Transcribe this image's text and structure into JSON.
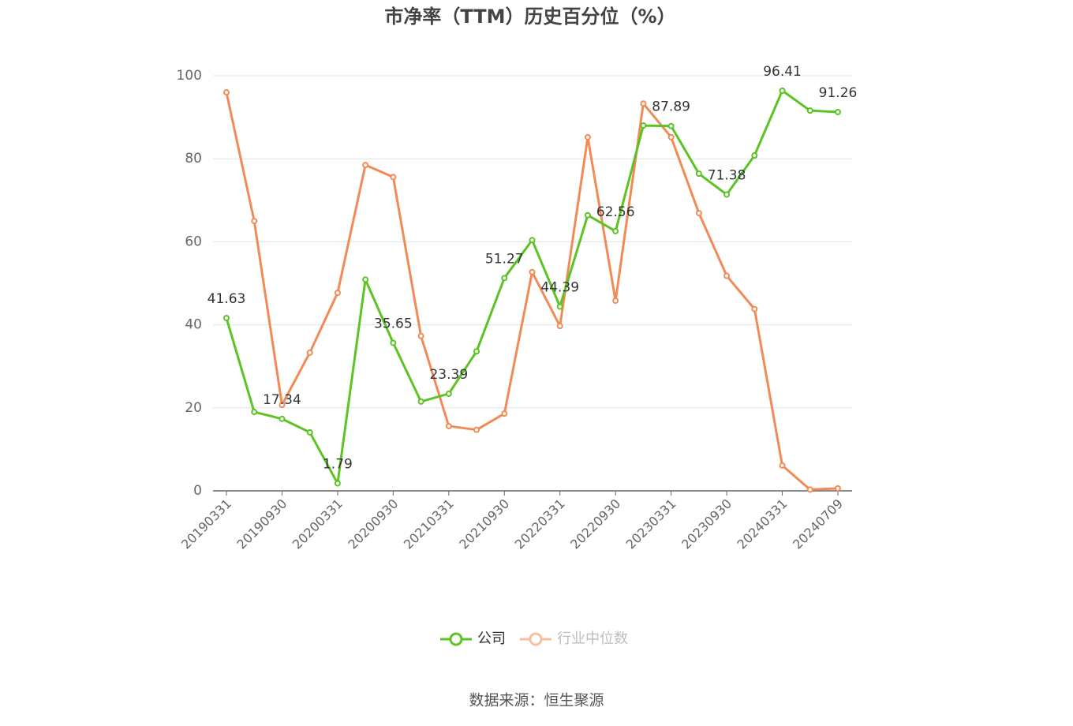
{
  "chart_data": {
    "type": "line",
    "title": "市净率（TTM）历史百分位（%）",
    "source": "数据来源：恒生聚源",
    "categories": [
      "20190331",
      null,
      "20190930",
      null,
      "20200331",
      null,
      "20200930",
      null,
      "20210331",
      null,
      "20210930",
      null,
      "20220331",
      null,
      "20220930",
      null,
      "20230331",
      null,
      "20230930",
      null,
      "20240331",
      null,
      "20240709"
    ],
    "series": [
      {
        "name": "公司",
        "color": "#5bc423",
        "values": [
          41.63,
          19.0,
          17.34,
          14.1,
          1.79,
          50.9,
          35.65,
          21.5,
          23.39,
          33.6,
          51.27,
          60.4,
          44.39,
          66.4,
          62.56,
          88.0,
          87.89,
          76.4,
          71.38,
          80.8,
          96.41,
          91.6,
          91.26
        ],
        "value_labels": [
          "41.63",
          null,
          "17.34",
          null,
          "1.79",
          null,
          "35.65",
          null,
          "23.39",
          null,
          "51.27",
          null,
          "44.39",
          null,
          "62.56",
          null,
          "87.89",
          null,
          "71.38",
          null,
          "96.41",
          null,
          "91.26"
        ]
      },
      {
        "name": "行业中位数",
        "color": "#f28a55",
        "values": [
          96.0,
          65.0,
          20.7,
          33.3,
          47.7,
          78.5,
          75.6,
          37.3,
          15.6,
          14.7,
          18.6,
          52.7,
          39.7,
          85.2,
          45.8,
          93.3,
          85.2,
          66.9,
          51.8,
          43.8,
          6.1,
          0.3,
          0.6
        ]
      }
    ],
    "ylim": [
      0,
      100
    ],
    "yticks": [
      0,
      20,
      40,
      60,
      80,
      100
    ],
    "grid": true
  }
}
